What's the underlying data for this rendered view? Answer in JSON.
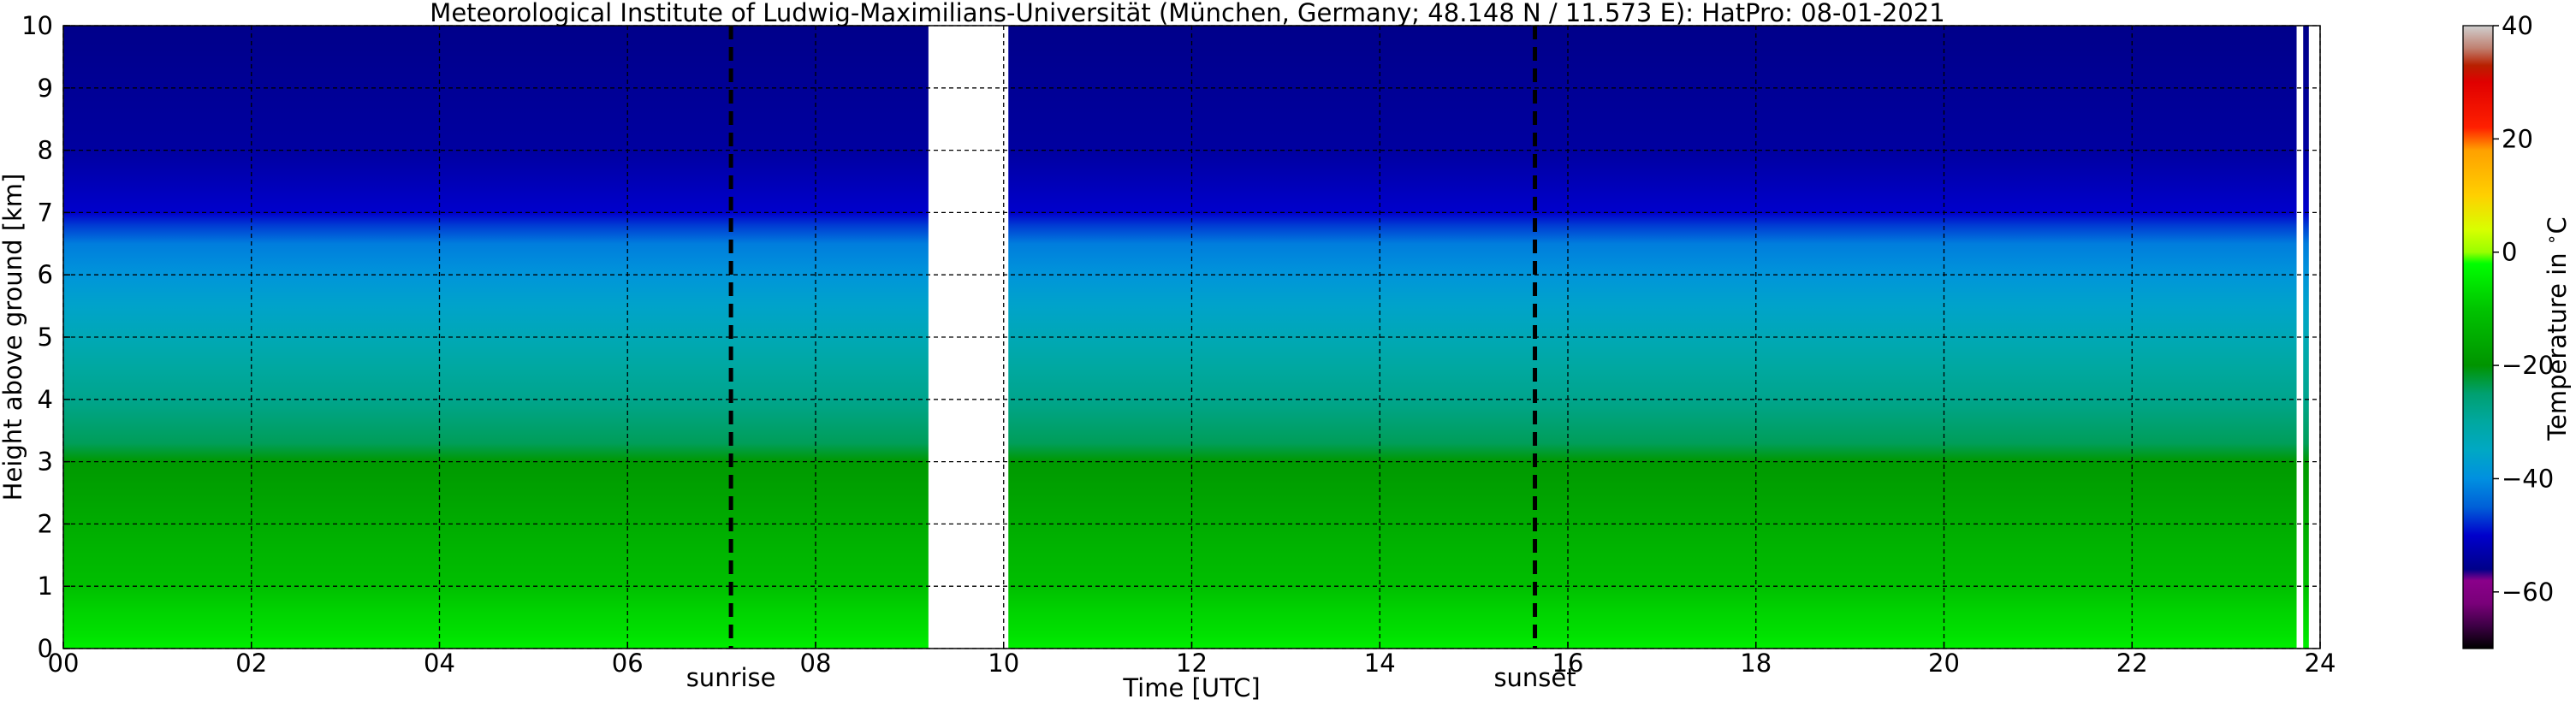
{
  "chart_data": {
    "type": "heatmap",
    "title": "Meteorological Institute of Ludwig-Maximilians-Universität (München, Germany; 48.148 N / 11.573 E):    HatPro: 08-01-2021",
    "xlabel": "Time [UTC]",
    "ylabel": "Height above ground [km]",
    "xlim": [
      0,
      24
    ],
    "ylim": [
      0,
      10
    ],
    "x_ticks": [
      "00",
      "02",
      "04",
      "06",
      "08",
      "10",
      "12",
      "14",
      "16",
      "18",
      "20",
      "22",
      "24"
    ],
    "y_ticks": [
      "0",
      "1",
      "2",
      "3",
      "4",
      "5",
      "6",
      "7",
      "8",
      "9",
      "10"
    ],
    "grid": true,
    "data_gaps": [
      [
        9.2,
        10.05
      ],
      [
        23.75,
        23.82
      ],
      [
        23.88,
        24.0
      ]
    ],
    "temperature_profile": {
      "height_km": [
        0.0,
        0.2,
        0.6,
        1.0,
        1.5,
        2.0,
        2.5,
        3.0,
        3.3,
        4.0,
        4.5,
        5.0,
        5.5,
        6.0,
        6.5,
        6.8,
        7.0,
        7.5,
        8.0,
        9.0,
        10.0
      ],
      "temperature_c": [
        -4,
        -6,
        -8,
        -11,
        -13,
        -15,
        -17,
        -19,
        -24,
        -28,
        -30,
        -33,
        -36,
        -39,
        -42,
        -47,
        -50,
        -52,
        -54,
        -55,
        -56
      ]
    },
    "markers": [
      {
        "label": "sunrise",
        "x": 7.1
      },
      {
        "label": "sunset",
        "x": 15.65
      }
    ],
    "colorbar": {
      "label": "Temperature in $^\\circ$C",
      "range": [
        -70,
        40
      ],
      "ticks": [
        "40",
        "20",
        "0",
        "−20",
        "−40",
        "−60"
      ],
      "tick_values": [
        40,
        20,
        0,
        -20,
        -40,
        -60
      ],
      "stops": [
        {
          "t": -70,
          "color": "#000000"
        },
        {
          "t": -66,
          "color": "#3d0045"
        },
        {
          "t": -62,
          "color": "#7a007a"
        },
        {
          "t": -58,
          "color": "#8a008a"
        },
        {
          "t": -56,
          "color": "#00008a"
        },
        {
          "t": -50,
          "color": "#0000cc"
        },
        {
          "t": -45,
          "color": "#0060d8"
        },
        {
          "t": -40,
          "color": "#0090e0"
        },
        {
          "t": -35,
          "color": "#00a8c4"
        },
        {
          "t": -30,
          "color": "#00a8a0"
        },
        {
          "t": -25,
          "color": "#00a070"
        },
        {
          "t": -20,
          "color": "#009400"
        },
        {
          "t": -10,
          "color": "#00c400"
        },
        {
          "t": -2,
          "color": "#00ff00"
        },
        {
          "t": 0,
          "color": "#99ff00"
        },
        {
          "t": 4,
          "color": "#d8ff00"
        },
        {
          "t": 10,
          "color": "#ffd000"
        },
        {
          "t": 18,
          "color": "#ffa000"
        },
        {
          "t": 22,
          "color": "#ff2000"
        },
        {
          "t": 30,
          "color": "#e00000"
        },
        {
          "t": 33,
          "color": "#b82000"
        },
        {
          "t": 36,
          "color": "#c08070"
        },
        {
          "t": 40,
          "color": "#d0d0d0"
        }
      ]
    }
  }
}
